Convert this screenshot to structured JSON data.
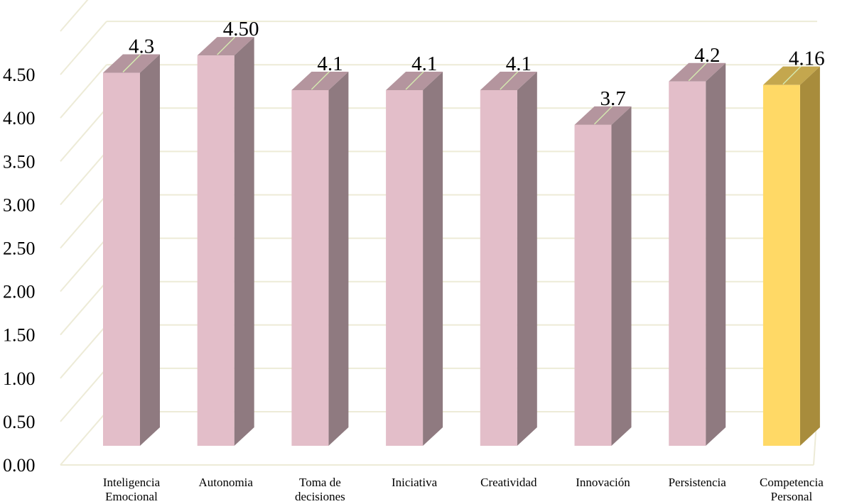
{
  "chart_data": {
    "type": "bar",
    "style": "3d-column",
    "title": "",
    "xlabel": "",
    "ylabel": "",
    "ylim": [
      0,
      5.0
    ],
    "yticks": [
      "0.00",
      "0.50",
      "1.00",
      "1.50",
      "2.00",
      "2.50",
      "3.00",
      "3.50",
      "4.00",
      "4.50"
    ],
    "grid": true,
    "categories": [
      [
        "Inteligencia",
        "Emocional"
      ],
      [
        "Autonomia"
      ],
      [
        "Toma de",
        "decisiones"
      ],
      [
        "Iniciativa"
      ],
      [
        "Creatividad"
      ],
      [
        "Innovación"
      ],
      [
        "Persistencia"
      ],
      [
        "Competencia",
        "Personal"
      ]
    ],
    "values": [
      4.3,
      4.5,
      4.1,
      4.1,
      4.1,
      3.7,
      4.2,
      4.16
    ],
    "data_labels": [
      "4.3",
      "4.50",
      "4.1",
      "4.1",
      "4.1",
      "3.7",
      "4.2",
      "4.16"
    ],
    "colors": {
      "bar_front": "#E3BEC9",
      "bar_side": "#8F7A80",
      "bar_top": "#B4959E",
      "highlight_front": "#FFD966",
      "highlight_side": "#A88C3C",
      "highlight_top": "#C4A74E",
      "grid": "#EDEBD7",
      "leader": "#D4E8B0"
    },
    "highlight_index": 7
  }
}
